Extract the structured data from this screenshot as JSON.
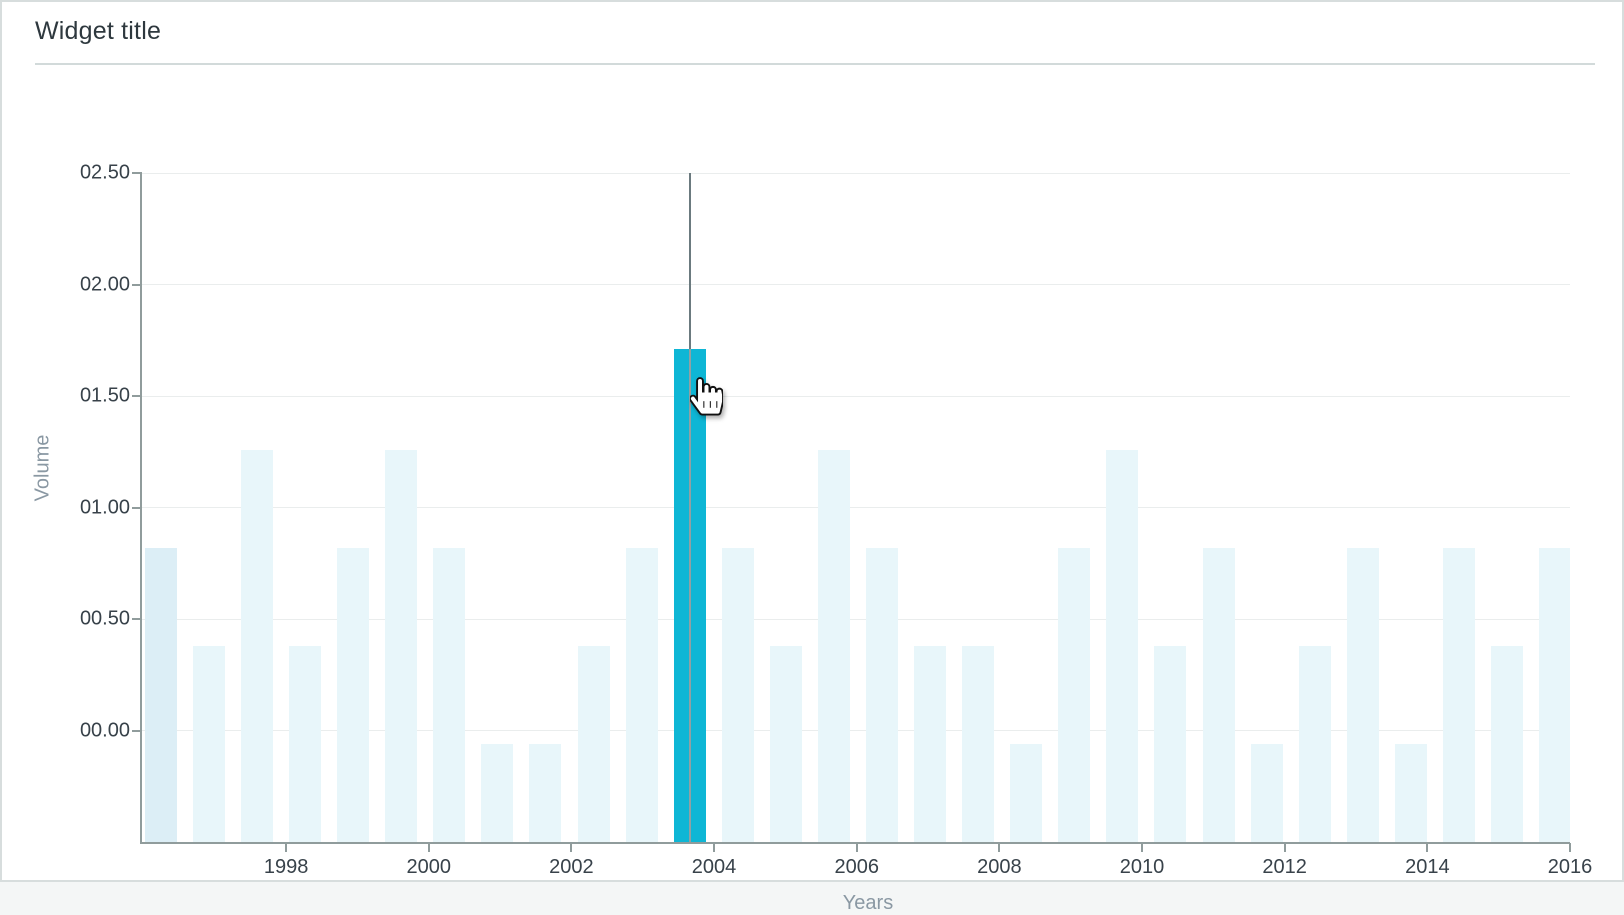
{
  "widget": {
    "title": "Widget title"
  },
  "chart_data": {
    "type": "bar",
    "title": "Widget title",
    "xlabel": "Years",
    "ylabel": "Volume",
    "ylim": [
      -0.5,
      2.5
    ],
    "x_domain_years": [
      1995.98,
      2016
    ],
    "grid": "horizontal",
    "legend": "none",
    "y_ticks": [
      {
        "label": "02.50",
        "value": 2.5
      },
      {
        "label": "02.00",
        "value": 2.0
      },
      {
        "label": "01.50",
        "value": 1.5
      },
      {
        "label": "01.00",
        "value": 1.0
      },
      {
        "label": "00.50",
        "value": 0.5
      },
      {
        "label": "00.00",
        "value": 0.0
      }
    ],
    "x_ticks": [
      {
        "label": "1998",
        "year": 1998
      },
      {
        "label": "2000",
        "year": 2000
      },
      {
        "label": "2002",
        "year": 2002
      },
      {
        "label": "2004",
        "year": 2004
      },
      {
        "label": "2006",
        "year": 2006
      },
      {
        "label": "2008",
        "year": 2008
      },
      {
        "label": "2010",
        "year": 2010
      },
      {
        "label": "2012",
        "year": 2012
      },
      {
        "label": "2014",
        "year": 2014
      },
      {
        "label": "2016",
        "year": 2016
      }
    ],
    "bars": [
      {
        "value": 0.82,
        "shade": "strong"
      },
      {
        "value": 0.38
      },
      {
        "value": 1.26
      },
      {
        "value": 0.38
      },
      {
        "value": 0.82
      },
      {
        "value": 1.26
      },
      {
        "value": 0.82
      },
      {
        "value": -0.06
      },
      {
        "value": -0.06
      },
      {
        "value": 0.38
      },
      {
        "value": 0.82
      },
      {
        "value": 1.71,
        "selected": true
      },
      {
        "value": 0.82
      },
      {
        "value": 0.38
      },
      {
        "value": 1.26
      },
      {
        "value": 0.82
      },
      {
        "value": 0.38
      },
      {
        "value": 0.38
      },
      {
        "value": -0.06
      },
      {
        "value": 0.82
      },
      {
        "value": 1.26
      },
      {
        "value": 0.38
      },
      {
        "value": 0.82
      },
      {
        "value": -0.06
      },
      {
        "value": 0.38
      },
      {
        "value": 0.82
      },
      {
        "value": -0.06
      },
      {
        "value": 0.82
      },
      {
        "value": 0.38
      },
      {
        "value": 0.82
      }
    ],
    "selected_bar": {
      "index": 11,
      "value": 1.71,
      "has_crosshair": true
    },
    "colors": {
      "bar": "#e8f6fa",
      "bar_strong": "#dceef6",
      "bar_selected": "#0eb6d5",
      "crosshair_upper": "#6b7a7f",
      "crosshair_lower": "#90a0a3",
      "axis": "#909c9c",
      "grid": "#eaeded",
      "tick_text": "#38424a",
      "axis_title_text": "#8a98a3",
      "widget_title_text": "#2e383e",
      "border": "#d7dddd",
      "separator": "#d2dada"
    },
    "cursor_icon": "hand-pointer"
  }
}
